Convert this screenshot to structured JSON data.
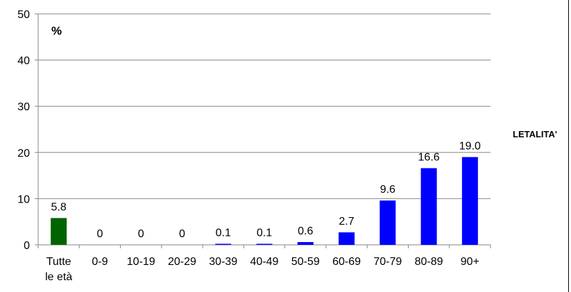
{
  "chart_data": {
    "type": "bar",
    "categories": [
      "Tutte le età",
      "0-9",
      "10-19",
      "20-29",
      "30-39",
      "40-49",
      "50-59",
      "60-69",
      "70-79",
      "80-89",
      "90+"
    ],
    "series": [
      {
        "name": "LETALITA'",
        "values": [
          5.8,
          0,
          0,
          0,
          0.1,
          0.1,
          0.6,
          2.7,
          9.6,
          16.6,
          19.0
        ]
      }
    ],
    "data_labels": [
      "5.8",
      "0",
      "0",
      "0",
      "0.1",
      "0.1",
      "0.6",
      "2.7",
      "9.6",
      "16.6",
      "19.0"
    ],
    "colors": [
      "#006400",
      "#0000ff",
      "#0000ff",
      "#0000ff",
      "#0000ff",
      "#0000ff",
      "#0000ff",
      "#0000ff",
      "#0000ff",
      "#0000ff",
      "#0000ff"
    ],
    "unit_label": "%",
    "series_label": "LETALITA'",
    "ylim": [
      0,
      50
    ],
    "yticks": [
      0,
      10,
      20,
      30,
      40,
      50
    ],
    "grid": true,
    "gridline_color": "#868686",
    "legend": "right"
  }
}
